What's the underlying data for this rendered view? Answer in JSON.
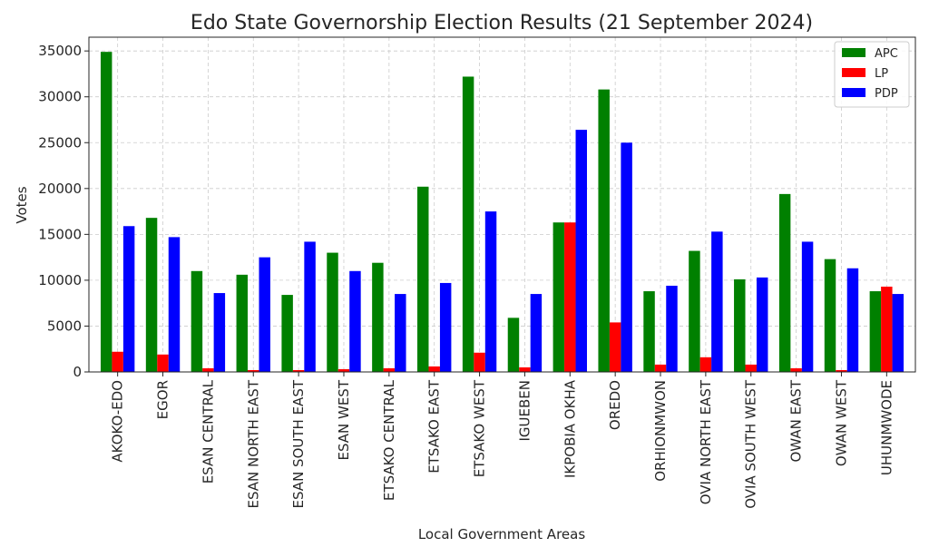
{
  "chart_data": {
    "type": "bar",
    "title": "Edo State Governorship Election Results (21 September 2024)",
    "xlabel": "Local Government Areas",
    "ylabel": "Votes",
    "ylim": [
      0,
      36500
    ],
    "yticks": [
      0,
      5000,
      10000,
      15000,
      20000,
      25000,
      30000,
      35000
    ],
    "grid": true,
    "legend_position": "top-right",
    "categories": [
      "AKOKO-EDO",
      "EGOR",
      "ESAN CENTRAL",
      "ESAN NORTH EAST",
      "ESAN SOUTH EAST",
      "ESAN WEST",
      "ETSAKO CENTRAL",
      "ETSAKO EAST",
      "ETSAKO WEST",
      "IGUEBEN",
      "IKPOBIA OKHA",
      "OREDO",
      "ORHIONMWON",
      "OVIA NORTH EAST",
      "OVIA SOUTH WEST",
      "OWAN EAST",
      "OWAN WEST",
      "UHUNMWODE"
    ],
    "series": [
      {
        "name": "APC",
        "color": "#008000",
        "values": [
          34900,
          16800,
          11000,
          10600,
          8400,
          13000,
          11900,
          20200,
          32200,
          5900,
          16300,
          30800,
          8800,
          13200,
          10100,
          19400,
          12300,
          8800
        ]
      },
      {
        "name": "LP",
        "color": "#ff0000",
        "values": [
          2200,
          1900,
          400,
          200,
          200,
          300,
          400,
          600,
          2100,
          500,
          16300,
          5400,
          800,
          1600,
          800,
          400,
          200,
          9300
        ]
      },
      {
        "name": "PDP",
        "color": "#0000ff",
        "values": [
          15900,
          14700,
          8600,
          12500,
          14200,
          11000,
          8500,
          9700,
          17500,
          8500,
          26400,
          25000,
          9400,
          15300,
          10300,
          14200,
          11300,
          8500
        ]
      }
    ]
  }
}
